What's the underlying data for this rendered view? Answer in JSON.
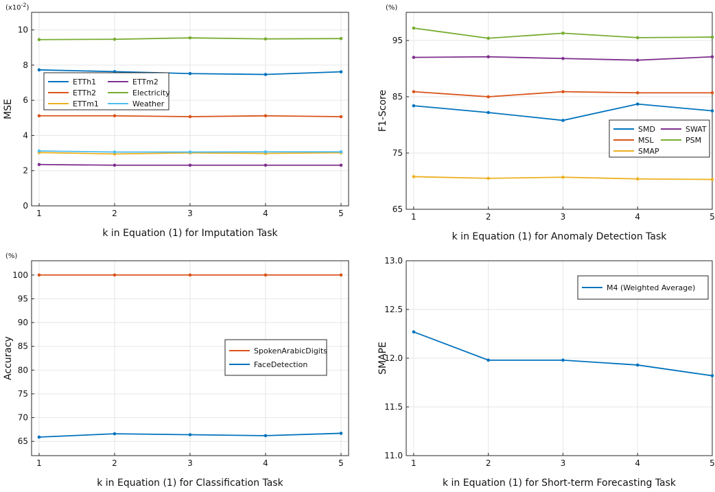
{
  "chart_data": [
    {
      "type": "line",
      "xlabel": "k in Equation (1) for Imputation Task",
      "ylabel": "MSE",
      "unit": "(x10^-2)",
      "x": [
        1,
        2,
        3,
        4,
        5
      ],
      "xlim": [
        0.9,
        5.1
      ],
      "ylim": [
        0,
        11
      ],
      "yticks": [
        0,
        2,
        4,
        6,
        8,
        10
      ],
      "grid": true,
      "legend": "middle-left",
      "legend_columns": 2,
      "series": [
        {
          "name": "ETTh1",
          "color": "#0072BD",
          "values": [
            7.73,
            7.63,
            7.52,
            7.47,
            7.62
          ]
        },
        {
          "name": "ETTm2",
          "color": "#7E2F8E",
          "values": [
            2.35,
            2.31,
            2.31,
            2.31,
            2.31
          ]
        },
        {
          "name": "ETTh2",
          "color": "#D95319",
          "values": [
            5.12,
            5.12,
            5.07,
            5.12,
            5.07
          ]
        },
        {
          "name": "Electricity",
          "color": "#77AC30",
          "values": [
            9.45,
            9.47,
            9.55,
            9.49,
            9.51
          ]
        },
        {
          "name": "ETTm1",
          "color": "#EDB120",
          "values": [
            3.03,
            2.95,
            3.01,
            2.98,
            3.02
          ]
        },
        {
          "name": "Weather",
          "color": "#4DBEEE",
          "values": [
            3.12,
            3.06,
            3.06,
            3.07,
            3.07
          ]
        }
      ]
    },
    {
      "type": "line",
      "xlabel": "k in Equation (1) for Anomaly Detection Task",
      "ylabel": "F1-Score",
      "unit": "(%)",
      "x": [
        1,
        2,
        3,
        4,
        5
      ],
      "xlim": [
        0.9,
        5.0
      ],
      "ylim": [
        65,
        100
      ],
      "yticks": [
        65,
        75,
        85,
        95
      ],
      "grid": true,
      "legend": "middle-right",
      "legend_columns": 2,
      "series": [
        {
          "name": "SMD",
          "color": "#0072BD",
          "values": [
            83.4,
            82.2,
            80.8,
            83.7,
            82.5
          ]
        },
        {
          "name": "SWAT",
          "color": "#7E2F8E",
          "values": [
            92.0,
            92.1,
            91.8,
            91.5,
            92.1
          ]
        },
        {
          "name": "MSL",
          "color": "#D95319",
          "values": [
            85.9,
            85.0,
            85.9,
            85.7,
            85.7
          ]
        },
        {
          "name": "PSM",
          "color": "#77AC30",
          "values": [
            97.2,
            95.4,
            96.3,
            95.5,
            95.6
          ]
        },
        {
          "name": "SMAP",
          "color": "#EDB120",
          "values": [
            70.8,
            70.5,
            70.7,
            70.4,
            70.3
          ]
        }
      ]
    },
    {
      "type": "line",
      "xlabel": "k in Equation (1) for Classification Task",
      "ylabel": "Accuracy",
      "unit": "(%)",
      "x": [
        1,
        2,
        3,
        4,
        5
      ],
      "xlim": [
        0.9,
        5.1
      ],
      "ylim": [
        62,
        103
      ],
      "yticks": [
        65,
        70,
        75,
        80,
        85,
        90,
        95,
        100
      ],
      "grid": true,
      "legend": "middle-right",
      "legend_columns": 1,
      "series": [
        {
          "name": "SpokenArabicDigits",
          "color": "#D95319",
          "values": [
            100.0,
            100.0,
            100.0,
            100.0,
            100.0
          ]
        },
        {
          "name": "FaceDetection",
          "color": "#0072BD",
          "values": [
            65.9,
            66.6,
            66.4,
            66.2,
            66.7
          ]
        }
      ]
    },
    {
      "type": "line",
      "xlabel": "k in Equation (1) for Short-term Forecasting Task",
      "ylabel": "SMAPE",
      "unit": "",
      "x": [
        1,
        2,
        3,
        4,
        5
      ],
      "xlim": [
        0.9,
        5.0
      ],
      "ylim": [
        11.0,
        13.0
      ],
      "yticks": [
        11.0,
        11.5,
        12.0,
        12.5,
        13.0
      ],
      "ytick_labels": [
        "11.0",
        "11.5",
        "12.0",
        "12.5",
        "13.0"
      ],
      "grid": true,
      "legend": "top-right",
      "legend_columns": 1,
      "series": [
        {
          "name": "M4 (Weighted Average)",
          "color": "#0072BD",
          "values": [
            12.27,
            11.98,
            11.98,
            11.93,
            11.82
          ]
        }
      ]
    }
  ]
}
